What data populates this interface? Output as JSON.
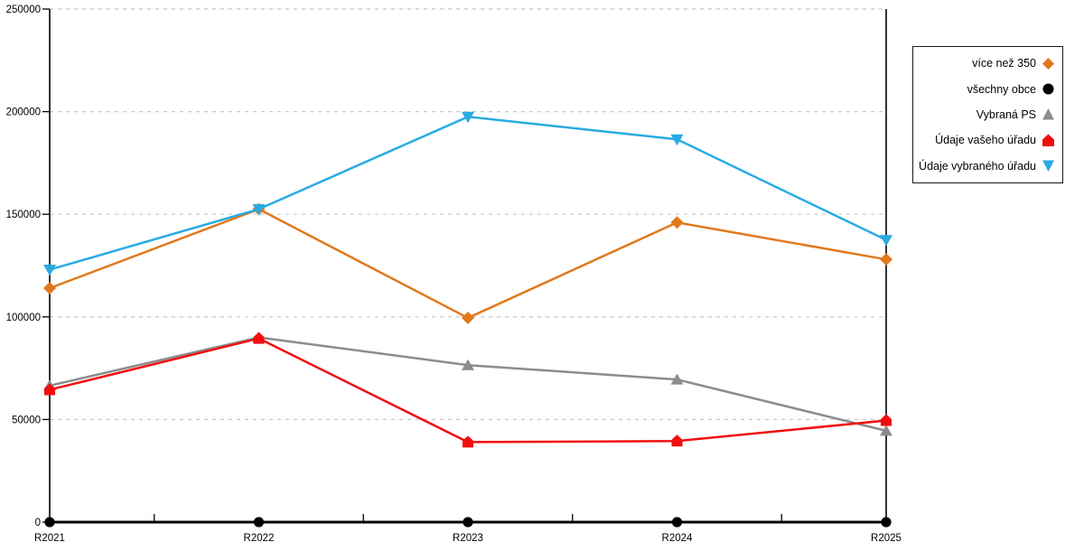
{
  "chart_data": {
    "type": "line",
    "title": "",
    "xlabel": "",
    "ylabel": "",
    "categories": [
      "R2021",
      "R2022",
      "R2023",
      "R2024",
      "R2025"
    ],
    "y_ticks": [
      0,
      50000,
      100000,
      150000,
      200000,
      250000
    ],
    "y_tick_labels": [
      "0",
      "50000",
      "100000",
      "150000",
      "200000",
      "250000"
    ],
    "ylim": [
      0,
      250000
    ],
    "grid": "horizontal-dashed",
    "grid_color": "#C8C8C8",
    "axis_color": "#000000",
    "legend_position": "right-outside",
    "series": [
      {
        "name": "více než 350",
        "color": "#E0791B",
        "marker": "diamond",
        "values": [
          114000,
          152500,
          99500,
          146000,
          128000
        ]
      },
      {
        "name": "všechny obce",
        "color": "#000000",
        "marker": "circle",
        "values": [
          0,
          0,
          0,
          0,
          0
        ]
      },
      {
        "name": "Vybraná PS",
        "color": "#8C8C8C",
        "marker": "triangle-up",
        "values": [
          66500,
          90000,
          76500,
          69500,
          44500
        ]
      },
      {
        "name": "Údaje vašeho úřadu",
        "color": "#F20D0D",
        "marker": "pentagon",
        "values": [
          64500,
          89500,
          39000,
          39500,
          49500
        ]
      },
      {
        "name": "Údaje vybraného úřadu",
        "color": "#29ABE2",
        "marker": "triangle-down",
        "values": [
          123000,
          152500,
          197500,
          186500,
          137500
        ]
      }
    ]
  }
}
